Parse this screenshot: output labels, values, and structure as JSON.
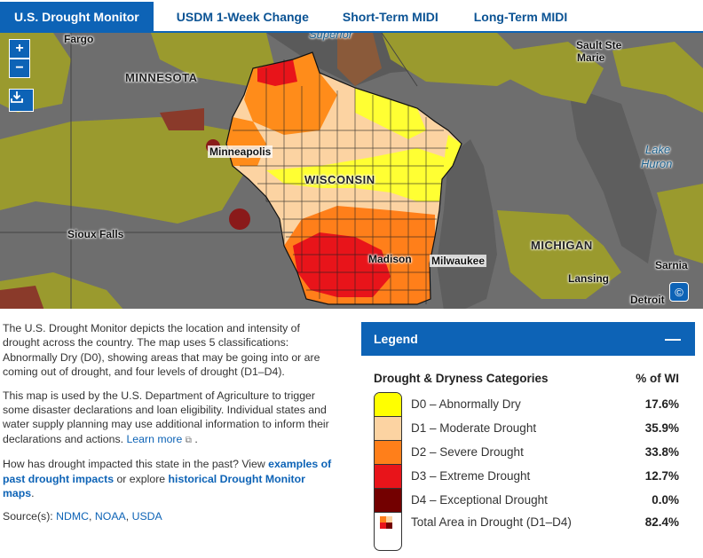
{
  "tabs": [
    {
      "label": "U.S. Drought Monitor",
      "active": true
    },
    {
      "label": "USDM 1-Week Change",
      "active": false
    },
    {
      "label": "Short-Term MIDI",
      "active": false
    },
    {
      "label": "Long-Term MIDI",
      "active": false
    }
  ],
  "map": {
    "zoom_in": "+",
    "zoom_out": "−",
    "copyright_symbol": "©",
    "labels": {
      "fargo": "Fargo",
      "superior": "Superior",
      "sault_ste_marie_1": "Sault Ste",
      "sault_ste_marie_2": "Marie",
      "minnesota": "MINNESOTA",
      "minneapolis": "Minneapolis",
      "wisconsin": "WISCONSIN",
      "lake_huron_1": "Lake",
      "lake_huron_2": "Huron",
      "sioux_falls": "Sioux Falls",
      "michigan": "MICHIGAN",
      "madison": "Madison",
      "milwaukee": "Milwaukee",
      "lansing": "Lansing",
      "sarnia": "Sarnia",
      "detroit": "Detroit"
    },
    "colors": {
      "d0": "#ffff00",
      "d1": "#fcd37f",
      "d2": "#ffaa00",
      "d3": "#e60000",
      "d4": "#730000",
      "outside_dry": "#9a9a2e"
    }
  },
  "description": {
    "p1": "The U.S. Drought Monitor depicts the location and intensity of drought across the country. The map uses 5 classifications: Abnormally Dry (D0), showing areas that may be going into or are coming out of drought, and four levels of drought (D1–D4).",
    "p2_text": "This map is used by the U.S. Department of Agriculture to trigger some disaster declarations and loan eligibility. Individual states and water supply planning may use additional information to inform their declarations and actions. ",
    "p2_link": "Learn more",
    "p2_end": " .",
    "p3_text": "How has drought impacted this state in the past? View ",
    "p3_link1": "examples of past drought impacts",
    "p3_mid": " or explore ",
    "p3_link2": "historical Drought Monitor maps",
    "p3_end": ".",
    "sources_label": "Source(s): ",
    "sources": [
      "NDMC",
      "NOAA",
      "USDA"
    ]
  },
  "legend": {
    "title": "Legend",
    "toggle": "—",
    "col_category": "Drought & Dryness Categories",
    "col_pct": "% of WI",
    "rows": [
      {
        "label": "D0 – Abnormally Dry",
        "pct": "17.6%",
        "color": "#ffff00"
      },
      {
        "label": "D1 – Moderate Drought",
        "pct": "35.9%",
        "color": "#fcd3a2"
      },
      {
        "label": "D2 – Severe Drought",
        "pct": "33.8%",
        "color": "#ff7f1a"
      },
      {
        "label": "D3 – Extreme Drought",
        "pct": "12.7%",
        "color": "#e8141a"
      },
      {
        "label": "D4 – Exceptional Drought",
        "pct": "0.0%",
        "color": "#730000"
      },
      {
        "label": "Total Area in Drought (D1–D4)",
        "pct": "82.4%",
        "color": "#ffffff"
      }
    ]
  }
}
